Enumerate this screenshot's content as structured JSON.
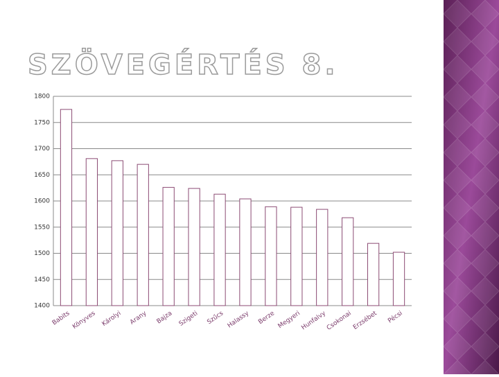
{
  "chart_data": {
    "type": "bar",
    "title": "SZÖVEGÉRTÉS 8.",
    "categories": [
      "Babits",
      "Könyves",
      "Károlyi",
      "Arany",
      "Bajza",
      "Szigeti",
      "Szűcs",
      "Halassy",
      "Berze",
      "Megyeri",
      "Hunfalvy",
      "Csokonai",
      "Erzsébet",
      "Pécsi"
    ],
    "values": [
      1775,
      1681,
      1677,
      1670,
      1626,
      1624,
      1613,
      1604,
      1589,
      1588,
      1584,
      1568,
      1519,
      1502
    ],
    "color": "#8b4a73",
    "ylim": [
      1400,
      1800
    ],
    "yticks": [
      1400,
      1450,
      1500,
      1550,
      1600,
      1650,
      1700,
      1750,
      1800
    ],
    "grid": true
  }
}
